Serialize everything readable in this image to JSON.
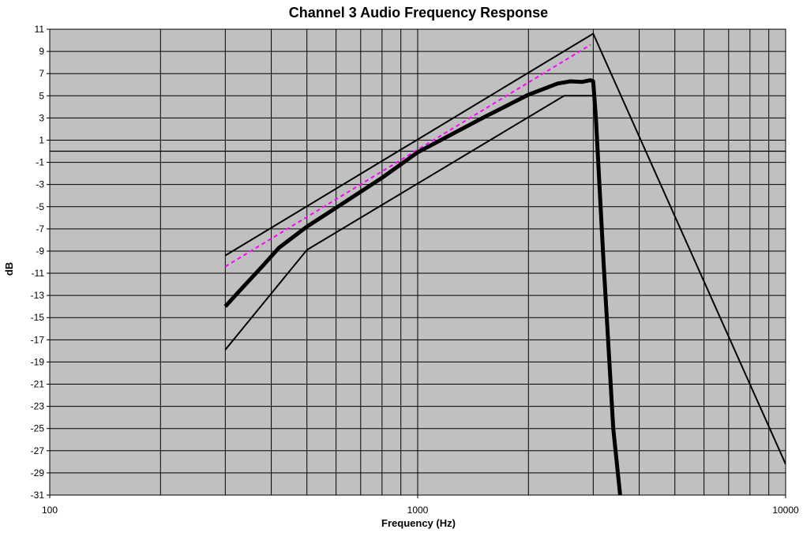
{
  "chart_data": {
    "type": "line",
    "title": "Channel 3 Audio Frequency Response",
    "xlabel": "Frequency (Hz)",
    "ylabel": "dB",
    "x_scale": "log",
    "xlim": [
      100,
      10000
    ],
    "ylim": [
      -31,
      11
    ],
    "x_ticks": [
      "100",
      "1000",
      "10000"
    ],
    "y_ticks": [
      "11",
      "9",
      "7",
      "5",
      "3",
      "1",
      "-1",
      "-3",
      "-5",
      "-7",
      "-9",
      "-11",
      "-13",
      "-15",
      "-17",
      "-19",
      "-21",
      "-23",
      "-25",
      "-27",
      "-29",
      "-31"
    ],
    "grid": true,
    "plot_background": "#c0c0c0",
    "series": [
      {
        "color": "#000000",
        "style": "solid",
        "width": 2,
        "points": [
          [
            300,
            -9.4
          ],
          [
            3000,
            10.6
          ],
          [
            10000,
            -28.2
          ]
        ]
      },
      {
        "color": "#000000",
        "style": "solid",
        "width": 2,
        "points": [
          [
            300,
            -17.9
          ],
          [
            500,
            -8.9
          ],
          [
            2500,
            5.0
          ],
          [
            3000,
            5.0
          ]
        ]
      },
      {
        "color": "#ff00ff",
        "style": "dashed",
        "width": 2,
        "points": [
          [
            300,
            -10.4
          ],
          [
            2950,
            9.6
          ]
        ]
      },
      {
        "color": "#000000",
        "style": "solid",
        "width": 5,
        "points": [
          [
            300,
            -14.0
          ],
          [
            330,
            -12.5
          ],
          [
            380,
            -10.3
          ],
          [
            420,
            -8.7
          ],
          [
            500,
            -6.8
          ],
          [
            600,
            -5.1
          ],
          [
            800,
            -2.4
          ],
          [
            1000,
            -0.1
          ],
          [
            1500,
            3.0
          ],
          [
            2000,
            5.1
          ],
          [
            2400,
            6.1
          ],
          [
            2600,
            6.3
          ],
          [
            2800,
            6.25
          ],
          [
            2950,
            6.4
          ],
          [
            3000,
            6.3
          ],
          [
            3050,
            3.0
          ],
          [
            3200,
            -10.0
          ],
          [
            3400,
            -25.0
          ],
          [
            3550,
            -31.0
          ]
        ]
      }
    ]
  }
}
